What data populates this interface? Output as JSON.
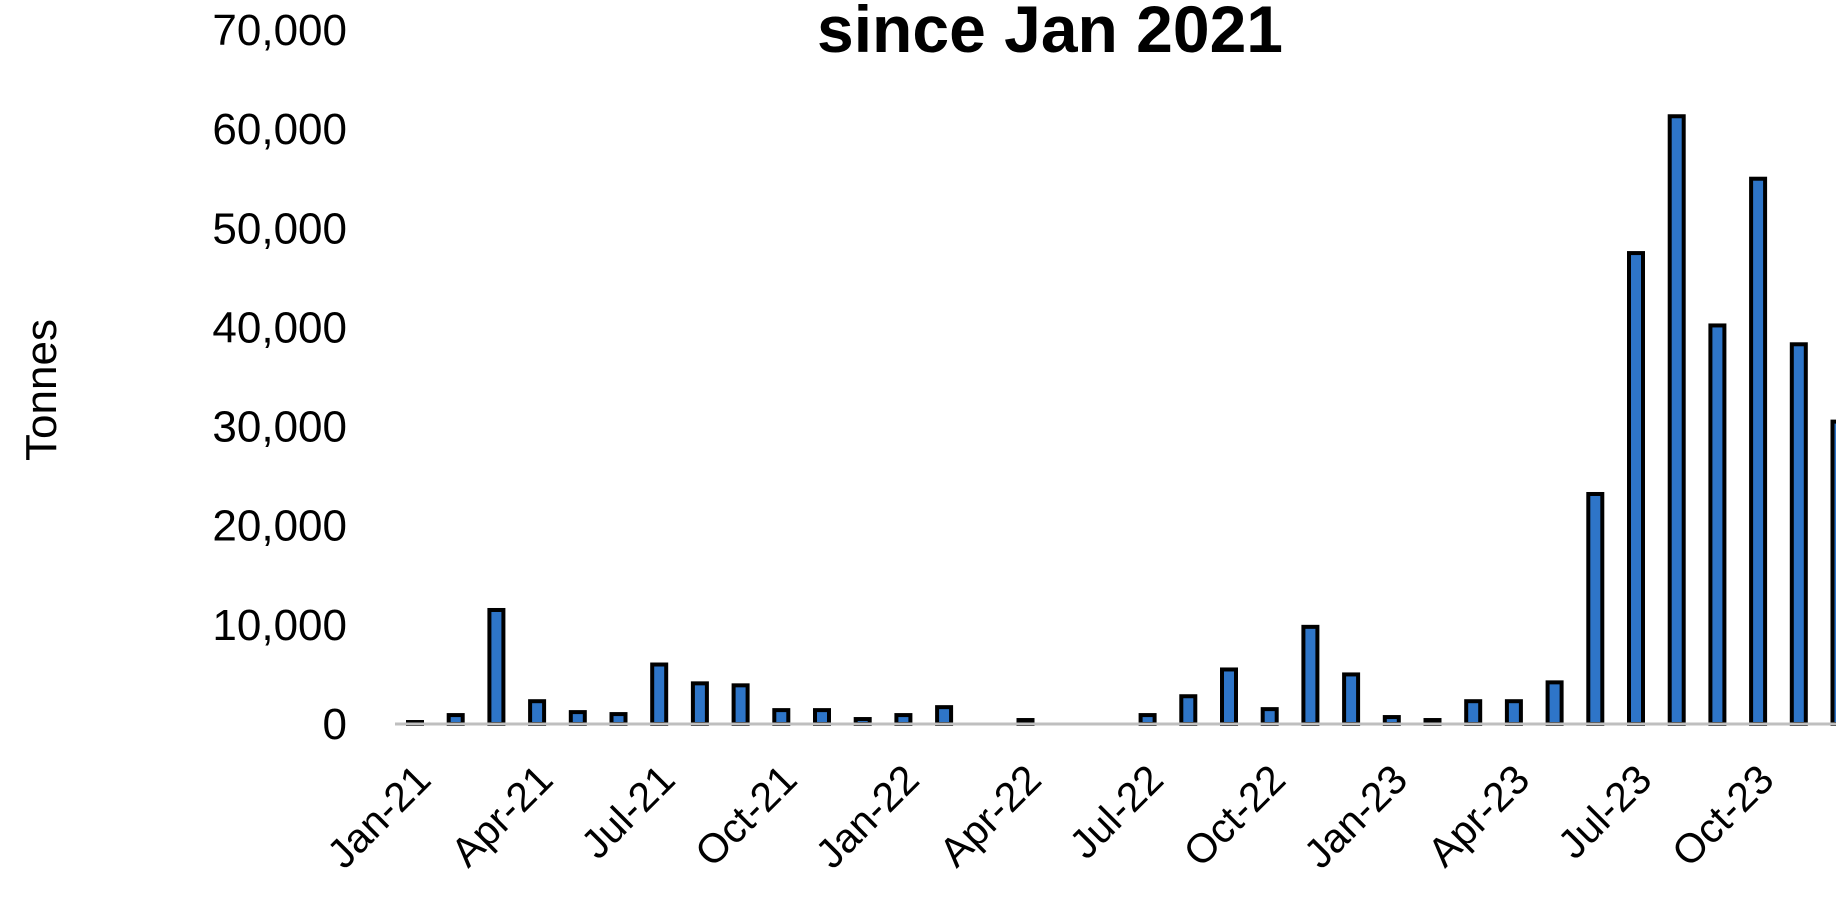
{
  "chart_data": {
    "type": "bar",
    "title": "since Jan 2021",
    "ylabel": "Tonnes",
    "xlabel": "",
    "ylim": [
      0,
      70000
    ],
    "yticks": [
      "0",
      "10,000",
      "20,000",
      "30,000",
      "40,000",
      "50,000",
      "60,000",
      "70,000"
    ],
    "xtick_labels": [
      "Jan-21",
      "Apr-21",
      "Jul-21",
      "Oct-21",
      "Jan-22",
      "Apr-22",
      "Jul-22",
      "Oct-22",
      "Jan-23",
      "Apr-23",
      "Jul-23",
      "Oct-23"
    ],
    "categories": [
      "Jan-21",
      "Feb-21",
      "Mar-21",
      "Apr-21",
      "May-21",
      "Jun-21",
      "Jul-21",
      "Aug-21",
      "Sep-21",
      "Oct-21",
      "Nov-21",
      "Dec-21",
      "Jan-22",
      "Feb-22",
      "Mar-22",
      "Apr-22",
      "May-22",
      "Jun-22",
      "Jul-22",
      "Aug-22",
      "Sep-22",
      "Oct-22",
      "Nov-22",
      "Dec-22",
      "Jan-23",
      "Feb-23",
      "Mar-23",
      "Apr-23",
      "May-23",
      "Jun-23",
      "Jul-23",
      "Aug-23",
      "Sep-23",
      "Oct-23",
      "Nov-23",
      "Dec-23"
    ],
    "values": [
      200,
      900,
      11500,
      2300,
      1200,
      1000,
      6000,
      4100,
      3900,
      1400,
      1400,
      500,
      900,
      1700,
      0,
      400,
      0,
      0,
      900,
      2800,
      5500,
      1500,
      9800,
      5000,
      700,
      400,
      2300,
      2300,
      4200,
      23200,
      47500,
      61300,
      40200,
      55000,
      38300,
      30500
    ],
    "bar_color": "#2E75C8",
    "bar_edge_color": "#000000",
    "axis_color": "#BFBFBF",
    "grid": false,
    "legend": false
  }
}
